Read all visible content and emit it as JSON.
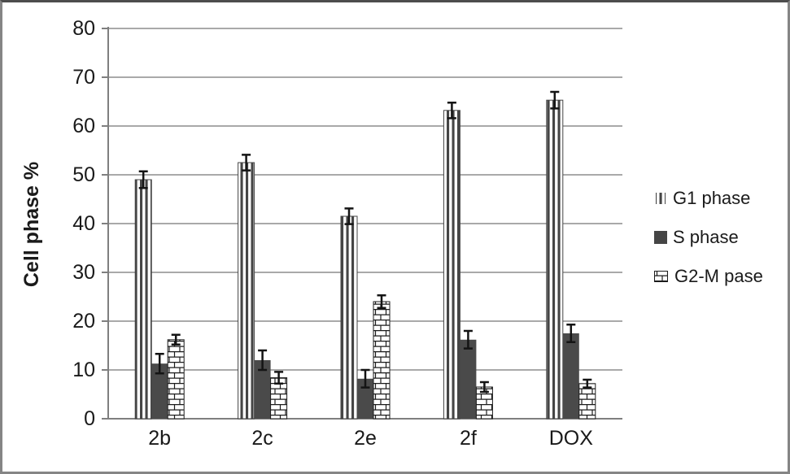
{
  "figure": {
    "border_color": "#858585",
    "background": "#ffffff"
  },
  "chart_data": {
    "type": "bar",
    "title": "",
    "xlabel": "",
    "ylabel": "Cell phase %",
    "ylim": [
      0,
      80
    ],
    "ytick_step": 10,
    "yticks": [
      "80",
      "70",
      "60",
      "50",
      "40",
      "30",
      "20",
      "10",
      "0"
    ],
    "ytick_values": [
      80,
      70,
      60,
      50,
      40,
      30,
      20,
      10,
      0
    ],
    "categories": [
      "2b",
      "2c",
      "2e",
      "2f",
      "DOX"
    ],
    "grid": "horizontal-only",
    "legend_position": "right",
    "error_bars": true,
    "series": [
      {
        "name": "G1 phase",
        "pattern": "vertical-stripes",
        "values": [
          49.0,
          52.5,
          41.5,
          63.2,
          65.3
        ],
        "errors": [
          1.7,
          1.6,
          1.6,
          1.6,
          1.7
        ]
      },
      {
        "name": "S phase",
        "pattern": "solid",
        "values": [
          11.3,
          12.0,
          8.2,
          16.2,
          17.5
        ],
        "errors": [
          2.0,
          2.0,
          1.8,
          1.8,
          1.8
        ]
      },
      {
        "name": "G2-M pase",
        "pattern": "brick",
        "values": [
          16.2,
          8.4,
          24.0,
          6.5,
          7.2
        ],
        "errors": [
          1.0,
          1.2,
          1.3,
          1.0,
          0.8
        ]
      }
    ],
    "colors": {
      "bar_dark": "#4a4a4a",
      "pattern_line": "#1c1c1c",
      "grid": "#9d9d9d",
      "axis": "#7f7f7f",
      "error_bar": "#141414",
      "text": "#1a1a1a"
    }
  }
}
